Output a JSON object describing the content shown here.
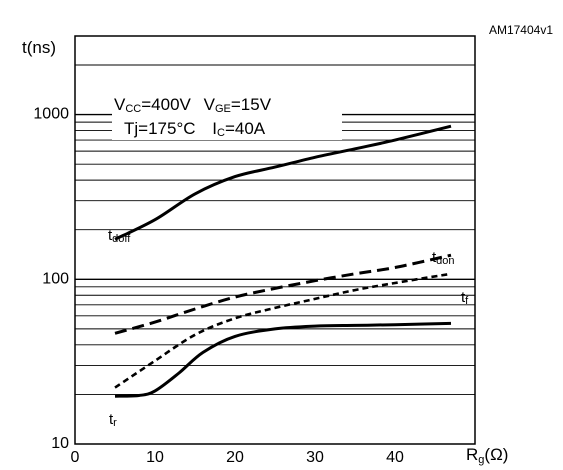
{
  "chart_data": {
    "type": "line",
    "title": "",
    "chart_id": "AM17404v1",
    "xlabel": {
      "main": "R",
      "sub": "g",
      "unit": "(Ω)"
    },
    "ylabel": "t(ns)",
    "xlim": [
      0,
      50
    ],
    "ylim": [
      10,
      3000
    ],
    "yscale": "log",
    "grid": "horizontal",
    "x_ticks": [
      "0",
      "10",
      "20",
      "30",
      "40"
    ],
    "y_ticks": [
      {
        "value": 10,
        "label": "10"
      },
      {
        "value": 100,
        "label": "100"
      },
      {
        "value": 1000,
        "label": "1000"
      }
    ],
    "conditions": [
      {
        "a_main": "V",
        "a_sub": "CC",
        "a_val": "=400V",
        "b_main": "V",
        "b_sub": "GE",
        "b_val": "=15V"
      },
      {
        "a_main": "Tj=175°C",
        "a_sub": "",
        "a_val": "",
        "b_main": "I",
        "b_sub": "C",
        "b_val": "=40A"
      }
    ],
    "series": [
      {
        "name": "t_doff",
        "label_main": "t",
        "label_sub": "doff",
        "style": "solid",
        "points": [
          [
            5,
            175
          ],
          [
            10,
            230
          ],
          [
            15,
            330
          ],
          [
            20,
            420
          ],
          [
            25,
            480
          ],
          [
            30,
            550
          ],
          [
            35,
            620
          ],
          [
            40,
            700
          ],
          [
            47,
            850
          ]
        ]
      },
      {
        "name": "t_don",
        "label_main": "t",
        "label_sub": "don",
        "style": "dashed",
        "points": [
          [
            5,
            47
          ],
          [
            10,
            55
          ],
          [
            15,
            66
          ],
          [
            20,
            78
          ],
          [
            25,
            88
          ],
          [
            30,
            98
          ],
          [
            35,
            108
          ],
          [
            40,
            118
          ],
          [
            47,
            140
          ]
        ]
      },
      {
        "name": "t_f",
        "label_main": "t",
        "label_sub": "f",
        "style": "dashed-fine",
        "points": [
          [
            5,
            22
          ],
          [
            10,
            32
          ],
          [
            15,
            46
          ],
          [
            20,
            58
          ],
          [
            25,
            67
          ],
          [
            30,
            76
          ],
          [
            35,
            86
          ],
          [
            40,
            95
          ],
          [
            47,
            108
          ]
        ]
      },
      {
        "name": "t_r",
        "label_main": "t",
        "label_sub": "r",
        "style": "solid",
        "points": [
          [
            5,
            19.5
          ],
          [
            8,
            19.7
          ],
          [
            10,
            21
          ],
          [
            13,
            27
          ],
          [
            16,
            36
          ],
          [
            20,
            45
          ],
          [
            25,
            50
          ],
          [
            30,
            52
          ],
          [
            35,
            52.5
          ],
          [
            40,
            53
          ],
          [
            47,
            54
          ]
        ]
      }
    ]
  }
}
